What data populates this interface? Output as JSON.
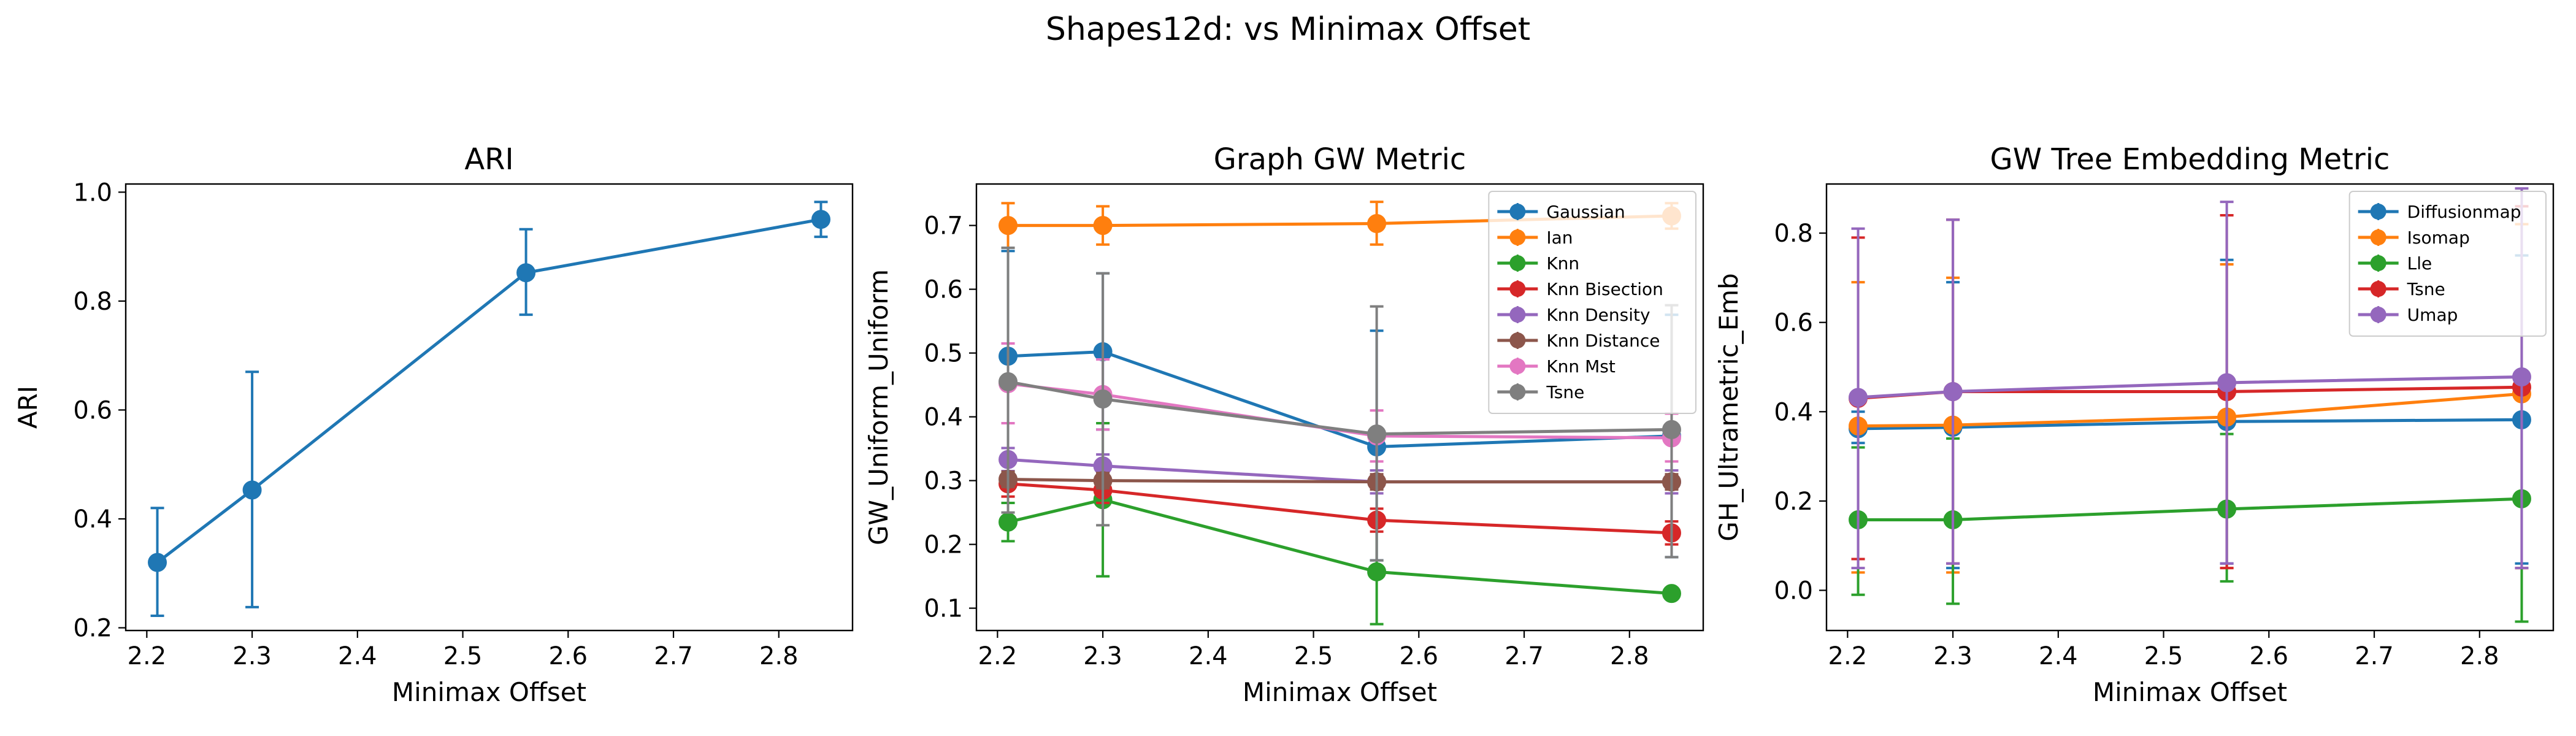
{
  "figure": {
    "suptitle": "Shapes12d: vs Minimax Offset"
  },
  "colors": {
    "blue": "#1f77b4",
    "orange": "#ff7f0e",
    "green": "#2ca02c",
    "red": "#d62728",
    "purple": "#9467bd",
    "brown": "#8c564b",
    "pink": "#e377c2",
    "gray": "#7f7f7f"
  },
  "chart_data": [
    {
      "type": "line",
      "title": "ARI",
      "xlabel": "Minimax Offset",
      "ylabel": "ARI",
      "xlim": [
        2.18,
        2.87
      ],
      "ylim": [
        0.195,
        1.015
      ],
      "xticks": [
        2.2,
        2.3,
        2.4,
        2.5,
        2.6,
        2.7,
        2.8
      ],
      "yticks": [
        0.2,
        0.4,
        0.6,
        0.8,
        1.0
      ],
      "legend": "none",
      "grid": false,
      "x": [
        2.21,
        2.3,
        2.56,
        2.84
      ],
      "series": [
        {
          "color": "#1f77b4",
          "values": [
            0.32,
            0.453,
            0.852,
            0.95
          ],
          "err_low": [
            0.222,
            0.238,
            0.775,
            0.918
          ],
          "err_high": [
            0.42,
            0.67,
            0.932,
            0.982
          ]
        }
      ]
    },
    {
      "type": "line",
      "title": "Graph GW Metric",
      "xlabel": "Minimax Offset",
      "ylabel": "GW_Uniform_Uniform",
      "xlim": [
        2.18,
        2.87
      ],
      "ylim": [
        0.065,
        0.765
      ],
      "xticks": [
        2.2,
        2.3,
        2.4,
        2.5,
        2.6,
        2.7,
        2.8
      ],
      "yticks": [
        0.1,
        0.2,
        0.3,
        0.4,
        0.5,
        0.6,
        0.7
      ],
      "legend": "top-right",
      "grid": false,
      "x": [
        2.21,
        2.3,
        2.56,
        2.84
      ],
      "series": [
        {
          "name": "Gaussian",
          "color": "#1f77b4",
          "values": [
            0.495,
            0.502,
            0.353,
            0.37
          ],
          "err_low": [
            0.33,
            0.38,
            0.175,
            0.18
          ],
          "err_high": [
            0.66,
            0.625,
            0.535,
            0.56
          ]
        },
        {
          "name": "Ian",
          "color": "#ff7f0e",
          "values": [
            0.7,
            0.7,
            0.703,
            0.715
          ],
          "err_low": [
            0.665,
            0.67,
            0.67,
            0.695
          ],
          "err_high": [
            0.735,
            0.73,
            0.737,
            0.735
          ]
        },
        {
          "name": "Knn",
          "color": "#2ca02c",
          "values": [
            0.235,
            0.27,
            0.157,
            0.123
          ],
          "err_low": [
            0.205,
            0.15,
            0.075,
            0.123
          ],
          "err_high": [
            0.265,
            0.39,
            0.24,
            0.123
          ]
        },
        {
          "name": "Knn Bisection",
          "color": "#d62728",
          "values": [
            0.295,
            0.285,
            0.238,
            0.218
          ],
          "err_low": [
            0.275,
            0.265,
            0.22,
            0.2
          ],
          "err_high": [
            0.315,
            0.305,
            0.256,
            0.236
          ]
        },
        {
          "name": "Knn Density",
          "color": "#9467bd",
          "values": [
            0.333,
            0.323,
            0.298,
            0.298
          ],
          "err_low": [
            0.315,
            0.305,
            0.28,
            0.28
          ],
          "err_high": [
            0.351,
            0.341,
            0.316,
            0.316
          ]
        },
        {
          "name": "Knn Distance",
          "color": "#8c564b",
          "values": [
            0.302,
            0.3,
            0.298,
            0.298
          ],
          "err_low": [
            0.29,
            0.288,
            0.286,
            0.286
          ],
          "err_high": [
            0.314,
            0.312,
            0.31,
            0.31
          ]
        },
        {
          "name": "Knn Mst",
          "color": "#e377c2",
          "values": [
            0.452,
            0.435,
            0.37,
            0.367
          ],
          "err_low": [
            0.39,
            0.38,
            0.33,
            0.33
          ],
          "err_high": [
            0.515,
            0.49,
            0.41,
            0.405
          ]
        },
        {
          "name": "Tsne",
          "color": "#7f7f7f",
          "values": [
            0.455,
            0.428,
            0.373,
            0.38
          ],
          "err_low": [
            0.25,
            0.23,
            0.175,
            0.18
          ],
          "err_high": [
            0.665,
            0.625,
            0.573,
            0.575
          ]
        }
      ]
    },
    {
      "type": "line",
      "title": "GW Tree Embedding Metric",
      "xlabel": "Minimax Offset",
      "ylabel": "GH_Ultrametric_Emb",
      "xlim": [
        2.18,
        2.87
      ],
      "ylim": [
        -0.09,
        0.91
      ],
      "xticks": [
        2.2,
        2.3,
        2.4,
        2.5,
        2.6,
        2.7,
        2.8
      ],
      "yticks": [
        0.0,
        0.2,
        0.4,
        0.6,
        0.8
      ],
      "legend": "top-right",
      "grid": false,
      "x": [
        2.21,
        2.3,
        2.56,
        2.84
      ],
      "series": [
        {
          "name": "Diffusionmap",
          "color": "#1f77b4",
          "values": [
            0.362,
            0.365,
            0.378,
            0.382
          ],
          "err_low": [
            0.33,
            0.05,
            0.06,
            0.06
          ],
          "err_high": [
            0.4,
            0.69,
            0.74,
            0.75
          ]
        },
        {
          "name": "Isomap",
          "color": "#ff7f0e",
          "values": [
            0.368,
            0.37,
            0.388,
            0.44
          ],
          "err_low": [
            0.04,
            0.04,
            0.05,
            0.05
          ],
          "err_high": [
            0.69,
            0.7,
            0.73,
            0.82
          ]
        },
        {
          "name": "Lle",
          "color": "#2ca02c",
          "values": [
            0.158,
            0.158,
            0.182,
            0.205
          ],
          "err_low": [
            -0.01,
            -0.03,
            0.02,
            -0.07
          ],
          "err_high": [
            0.32,
            0.34,
            0.35,
            0.48
          ]
        },
        {
          "name": "Tsne",
          "color": "#d62728",
          "values": [
            0.43,
            0.445,
            0.445,
            0.455
          ],
          "err_low": [
            0.07,
            0.06,
            0.05,
            0.05
          ],
          "err_high": [
            0.79,
            0.83,
            0.84,
            0.86
          ]
        },
        {
          "name": "Umap",
          "color": "#9467bd",
          "values": [
            0.432,
            0.445,
            0.465,
            0.478
          ],
          "err_low": [
            0.05,
            0.06,
            0.06,
            0.05
          ],
          "err_high": [
            0.81,
            0.83,
            0.87,
            0.9
          ]
        }
      ]
    }
  ]
}
